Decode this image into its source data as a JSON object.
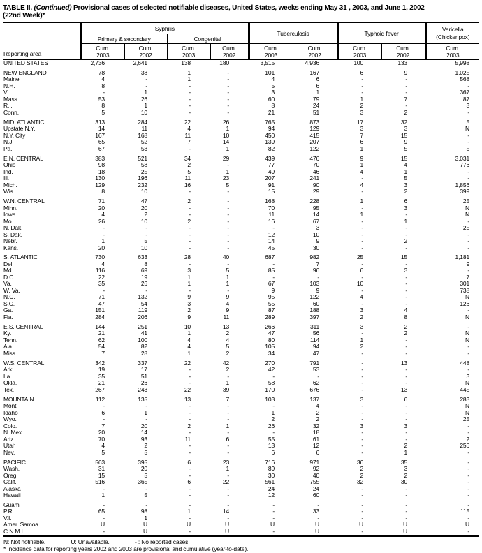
{
  "title": {
    "part1": "TABLE II.",
    "continued": "(Continued)",
    "part2": "Provisional cases of selected notifiable diseases, United States, weeks ending May 31 , 2003, and June 1, 2002",
    "line2": "(22nd Week)*"
  },
  "header": {
    "reporting_area": "Reporting area",
    "syphilis": "Syphilis",
    "primary_secondary": "Primary & secondary",
    "congenital": "Congenital",
    "tuberculosis": "Tuberculosis",
    "typhoid": "Typhoid fever",
    "varicella": "Varicella\n(Chickenpox)",
    "cum": [
      "Cum.\n2003",
      "Cum.\n2002",
      "Cum.\n2003",
      "Cum.\n2002",
      "Cum.\n2003",
      "Cum.\n2002",
      "Cum.\n2003",
      "Cum.\n2002",
      "Cum.\n2003"
    ]
  },
  "table": {
    "groups": [
      {
        "rows": [
          {
            "area": "UNITED STATES",
            "values": [
              "2,736",
              "2,641",
              "138",
              "180",
              "3,515",
              "4,936",
              "100",
              "133",
              "5,998"
            ]
          }
        ]
      },
      {
        "rows": [
          {
            "area": "NEW ENGLAND",
            "values": [
              "78",
              "38",
              "1",
              "-",
              "101",
              "167",
              "6",
              "9",
              "1,025"
            ]
          },
          {
            "area": "Maine",
            "values": [
              "4",
              "-",
              "1",
              "-",
              "4",
              "6",
              "-",
              "-",
              "568"
            ]
          },
          {
            "area": "N.H.",
            "values": [
              "8",
              "-",
              "-",
              "-",
              "5",
              "6",
              "-",
              "-",
              "-"
            ]
          },
          {
            "area": "Vt.",
            "values": [
              "-",
              "1",
              "-",
              "-",
              "3",
              "1",
              "-",
              "-",
              "367"
            ]
          },
          {
            "area": "Mass.",
            "values": [
              "53",
              "26",
              "-",
              "-",
              "60",
              "79",
              "1",
              "7",
              "87"
            ]
          },
          {
            "area": "R.I.",
            "values": [
              "8",
              "1",
              "-",
              "-",
              "8",
              "24",
              "2",
              "-",
              "3"
            ]
          },
          {
            "area": "Conn.",
            "values": [
              "5",
              "10",
              "-",
              "-",
              "21",
              "51",
              "3",
              "2",
              "-"
            ]
          }
        ]
      },
      {
        "rows": [
          {
            "area": "MID. ATLANTIC",
            "values": [
              "313",
              "284",
              "22",
              "26",
              "765",
              "873",
              "17",
              "32",
              "5"
            ]
          },
          {
            "area": "Upstate N.Y.",
            "values": [
              "14",
              "11",
              "4",
              "1",
              "94",
              "129",
              "3",
              "3",
              "N"
            ]
          },
          {
            "area": "N.Y. City",
            "values": [
              "167",
              "168",
              "11",
              "10",
              "450",
              "415",
              "7",
              "15",
              "-"
            ]
          },
          {
            "area": "N.J.",
            "values": [
              "65",
              "52",
              "7",
              "14",
              "139",
              "207",
              "6",
              "9",
              "-"
            ]
          },
          {
            "area": "Pa.",
            "values": [
              "67",
              "53",
              "-",
              "1",
              "82",
              "122",
              "1",
              "5",
              "5"
            ]
          }
        ]
      },
      {
        "rows": [
          {
            "area": "E.N. CENTRAL",
            "values": [
              "383",
              "521",
              "34",
              "29",
              "439",
              "476",
              "9",
              "15",
              "3,031"
            ]
          },
          {
            "area": "Ohio",
            "values": [
              "98",
              "58",
              "2",
              "-",
              "77",
              "70",
              "1",
              "4",
              "776"
            ]
          },
          {
            "area": "Ind.",
            "values": [
              "18",
              "25",
              "5",
              "1",
              "49",
              "46",
              "4",
              "1",
              "-"
            ]
          },
          {
            "area": "Ill.",
            "values": [
              "130",
              "196",
              "11",
              "23",
              "207",
              "241",
              "-",
              "5",
              "-"
            ]
          },
          {
            "area": "Mich.",
            "values": [
              "129",
              "232",
              "16",
              "5",
              "91",
              "90",
              "4",
              "3",
              "1,856"
            ]
          },
          {
            "area": "Wis.",
            "values": [
              "8",
              "10",
              "-",
              "-",
              "15",
              "29",
              "-",
              "2",
              "399"
            ]
          }
        ]
      },
      {
        "rows": [
          {
            "area": "W.N. CENTRAL",
            "values": [
              "71",
              "47",
              "2",
              "-",
              "168",
              "228",
              "1",
              "6",
              "25"
            ]
          },
          {
            "area": "Minn.",
            "values": [
              "20",
              "20",
              "-",
              "-",
              "70",
              "95",
              "-",
              "3",
              "N"
            ]
          },
          {
            "area": "Iowa",
            "values": [
              "4",
              "2",
              "-",
              "-",
              "11",
              "14",
              "1",
              "-",
              "N"
            ]
          },
          {
            "area": "Mo.",
            "values": [
              "26",
              "10",
              "2",
              "-",
              "16",
              "67",
              "-",
              "1",
              "-"
            ]
          },
          {
            "area": "N. Dak.",
            "values": [
              "-",
              "-",
              "-",
              "-",
              "-",
              "3",
              "-",
              "-",
              "25"
            ]
          },
          {
            "area": "S. Dak.",
            "values": [
              "-",
              "-",
              "-",
              "-",
              "12",
              "10",
              "-",
              "-",
              "-"
            ]
          },
          {
            "area": "Nebr.",
            "values": [
              "1",
              "5",
              "-",
              "-",
              "14",
              "9",
              "-",
              "2",
              "-"
            ]
          },
          {
            "area": "Kans.",
            "values": [
              "20",
              "10",
              "-",
              "-",
              "45",
              "30",
              "-",
              "-",
              "-"
            ]
          }
        ]
      },
      {
        "rows": [
          {
            "area": "S. ATLANTIC",
            "values": [
              "730",
              "633",
              "28",
              "40",
              "687",
              "982",
              "25",
              "15",
              "1,181"
            ]
          },
          {
            "area": "Del.",
            "values": [
              "4",
              "8",
              "-",
              "-",
              "-",
              "7",
              "-",
              "-",
              "9"
            ]
          },
          {
            "area": "Md.",
            "values": [
              "116",
              "69",
              "3",
              "5",
              "85",
              "96",
              "6",
              "3",
              "-"
            ]
          },
          {
            "area": "D.C.",
            "values": [
              "22",
              "19",
              "1",
              "1",
              "-",
              "-",
              "-",
              "-",
              "7"
            ]
          },
          {
            "area": "Va.",
            "values": [
              "35",
              "26",
              "1",
              "1",
              "67",
              "103",
              "10",
              "-",
              "301"
            ]
          },
          {
            "area": "W. Va.",
            "values": [
              "-",
              "-",
              "-",
              "-",
              "9",
              "9",
              "-",
              "-",
              "738"
            ]
          },
          {
            "area": "N.C.",
            "values": [
              "71",
              "132",
              "9",
              "9",
              "95",
              "122",
              "4",
              "-",
              "N"
            ]
          },
          {
            "area": "S.C.",
            "values": [
              "47",
              "54",
              "3",
              "4",
              "55",
              "60",
              "-",
              "-",
              "126"
            ]
          },
          {
            "area": "Ga.",
            "values": [
              "151",
              "119",
              "2",
              "9",
              "87",
              "188",
              "3",
              "4",
              "-"
            ]
          },
          {
            "area": "Fla.",
            "values": [
              "284",
              "206",
              "9",
              "11",
              "289",
              "397",
              "2",
              "8",
              "N"
            ]
          }
        ]
      },
      {
        "rows": [
          {
            "area": "E.S. CENTRAL",
            "values": [
              "144",
              "251",
              "10",
              "13",
              "266",
              "311",
              "3",
              "2",
              "-"
            ]
          },
          {
            "area": "Ky.",
            "values": [
              "21",
              "41",
              "1",
              "2",
              "47",
              "56",
              "-",
              "2",
              "N"
            ]
          },
          {
            "area": "Tenn.",
            "values": [
              "62",
              "100",
              "4",
              "4",
              "80",
              "114",
              "1",
              "-",
              "N"
            ]
          },
          {
            "area": "Ala.",
            "values": [
              "54",
              "82",
              "4",
              "5",
              "105",
              "94",
              "2",
              "-",
              "-"
            ]
          },
          {
            "area": "Miss.",
            "values": [
              "7",
              "28",
              "1",
              "2",
              "34",
              "47",
              "-",
              "-",
              "-"
            ]
          }
        ]
      },
      {
        "rows": [
          {
            "area": "W.S. CENTRAL",
            "values": [
              "342",
              "337",
              "22",
              "42",
              "270",
              "791",
              "-",
              "13",
              "448"
            ]
          },
          {
            "area": "Ark.",
            "values": [
              "19",
              "17",
              "-",
              "2",
              "42",
              "53",
              "-",
              "-",
              "-"
            ]
          },
          {
            "area": "La.",
            "values": [
              "35",
              "51",
              "-",
              "-",
              "-",
              "-",
              "-",
              "-",
              "3"
            ]
          },
          {
            "area": "Okla.",
            "values": [
              "21",
              "26",
              "-",
              "1",
              "58",
              "62",
              "-",
              "-",
              "N"
            ]
          },
          {
            "area": "Tex.",
            "values": [
              "267",
              "243",
              "22",
              "39",
              "170",
              "676",
              "-",
              "13",
              "445"
            ]
          }
        ]
      },
      {
        "rows": [
          {
            "area": "MOUNTAIN",
            "values": [
              "112",
              "135",
              "13",
              "7",
              "103",
              "137",
              "3",
              "6",
              "283"
            ]
          },
          {
            "area": "Mont.",
            "values": [
              "-",
              "-",
              "-",
              "-",
              "-",
              "4",
              "-",
              "-",
              "N"
            ]
          },
          {
            "area": "Idaho",
            "values": [
              "6",
              "1",
              "-",
              "-",
              "1",
              "2",
              "-",
              "-",
              "N"
            ]
          },
          {
            "area": "Wyo.",
            "values": [
              "-",
              "-",
              "-",
              "-",
              "2",
              "2",
              "-",
              "-",
              "25"
            ]
          },
          {
            "area": "Colo.",
            "values": [
              "7",
              "20",
              "2",
              "1",
              "26",
              "32",
              "3",
              "3",
              "-"
            ]
          },
          {
            "area": "N. Mex.",
            "values": [
              "20",
              "14",
              "-",
              "-",
              "-",
              "18",
              "-",
              "-",
              "-"
            ]
          },
          {
            "area": "Ariz.",
            "values": [
              "70",
              "93",
              "11",
              "6",
              "55",
              "61",
              "-",
              "-",
              "2"
            ]
          },
          {
            "area": "Utah",
            "values": [
              "4",
              "2",
              "-",
              "-",
              "13",
              "12",
              "-",
              "2",
              "256"
            ]
          },
          {
            "area": "Nev.",
            "values": [
              "5",
              "5",
              "-",
              "-",
              "6",
              "6",
              "-",
              "1",
              "-"
            ]
          }
        ]
      },
      {
        "rows": [
          {
            "area": "PACIFIC",
            "values": [
              "563",
              "395",
              "6",
              "23",
              "716",
              "971",
              "36",
              "35",
              "-"
            ]
          },
          {
            "area": "Wash.",
            "values": [
              "31",
              "20",
              "-",
              "1",
              "89",
              "92",
              "2",
              "3",
              "-"
            ]
          },
          {
            "area": "Oreg.",
            "values": [
              "15",
              "5",
              "-",
              "-",
              "30",
              "40",
              "2",
              "2",
              "-"
            ]
          },
          {
            "area": "Calif.",
            "values": [
              "516",
              "365",
              "6",
              "22",
              "561",
              "755",
              "32",
              "30",
              "-"
            ]
          },
          {
            "area": "Alaska",
            "values": [
              "-",
              "-",
              "-",
              "-",
              "24",
              "24",
              "-",
              "-",
              "-"
            ]
          },
          {
            "area": "Hawaii",
            "values": [
              "1",
              "5",
              "-",
              "-",
              "12",
              "60",
              "-",
              "-",
              "-"
            ]
          }
        ]
      },
      {
        "rows": [
          {
            "area": "Guam",
            "values": [
              "-",
              "-",
              "-",
              "-",
              "-",
              "-",
              "-",
              "-",
              "-"
            ]
          },
          {
            "area": "P.R.",
            "values": [
              "65",
              "98",
              "1",
              "14",
              "-",
              "33",
              "-",
              "-",
              "115"
            ]
          },
          {
            "area": "V.I.",
            "values": [
              "-",
              "1",
              "-",
              "-",
              "-",
              "-",
              "-",
              "-",
              "-"
            ]
          },
          {
            "area": "Amer. Samoa",
            "values": [
              "U",
              "U",
              "U",
              "U",
              "U",
              "U",
              "U",
              "U",
              "U"
            ]
          },
          {
            "area": "C.N.M.I.",
            "values": [
              "-",
              "U",
              "-",
              "U",
              "-",
              "U",
              "-",
              "U",
              "-"
            ]
          }
        ]
      }
    ]
  },
  "footnotes": {
    "n": "N: Not notifiable.",
    "u": "U: Unavailable.",
    "dash": "- : No reported cases.",
    "asterisk": "* Incidence data for reporting years 2002 and 2003 are provisional and cumulative (year-to-date)."
  }
}
